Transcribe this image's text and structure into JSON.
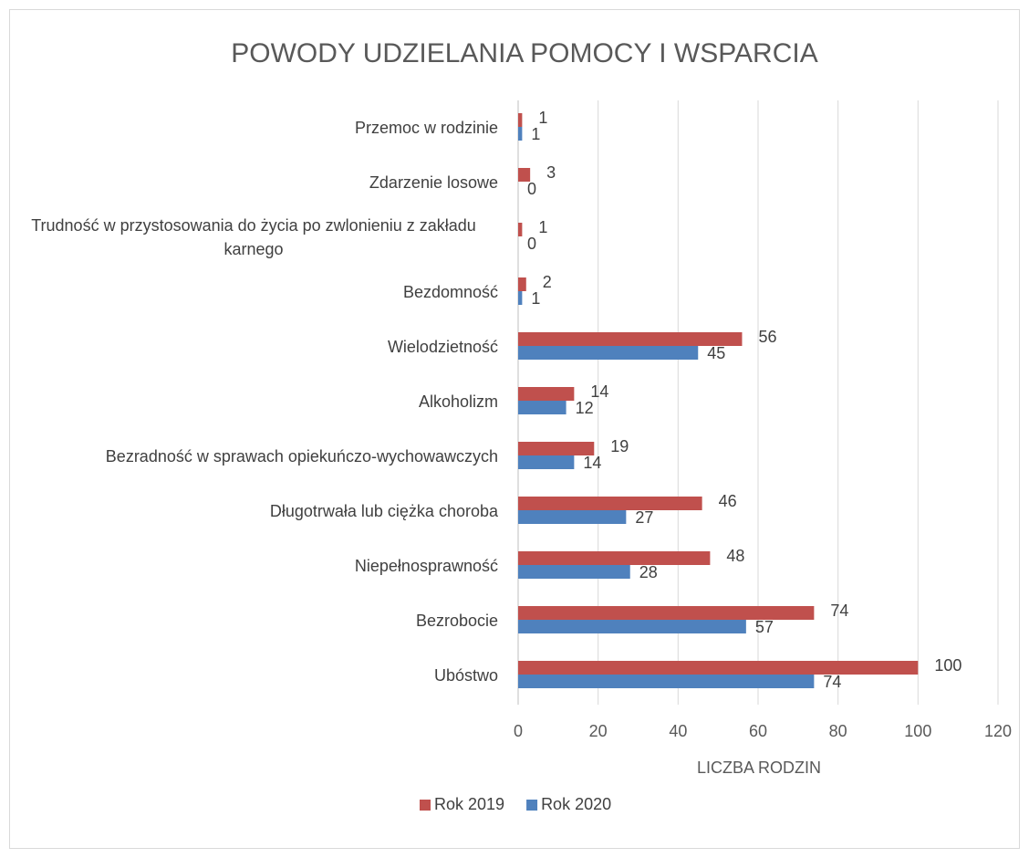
{
  "chart_data": {
    "type": "barh",
    "title": "POWODY UDZIELANIA POMOCY I WSPARCIA",
    "categories": [
      "Przemoc w rodzinie",
      "Zdarzenie losowe",
      "Trudność w przystosowania do życia po zwlonieniu z zakładu karnego",
      "Bezdomność",
      "Wielodzietność",
      "Alkoholizm",
      "Bezradność w sprawach opiekuńczo-wychowawczych",
      "Długotrwała lub ciężka choroba",
      "Niepełnosprawność",
      "Bezrobocie",
      "Ubóstwo"
    ],
    "series": [
      {
        "name": "Rok 2019",
        "color": "#c0504d",
        "values": [
          1,
          3,
          1,
          2,
          56,
          14,
          19,
          46,
          48,
          74,
          100
        ]
      },
      {
        "name": "Rok 2020",
        "color": "#4f81bd",
        "values": [
          1,
          0,
          0,
          1,
          45,
          12,
          14,
          27,
          28,
          57,
          74
        ]
      }
    ],
    "xlabel": "LICZBA RODZIN",
    "xlim": [
      0,
      120
    ],
    "xticks": [
      0,
      20,
      40,
      60,
      80,
      100,
      120
    ],
    "grid": true,
    "legend": "bottom"
  }
}
